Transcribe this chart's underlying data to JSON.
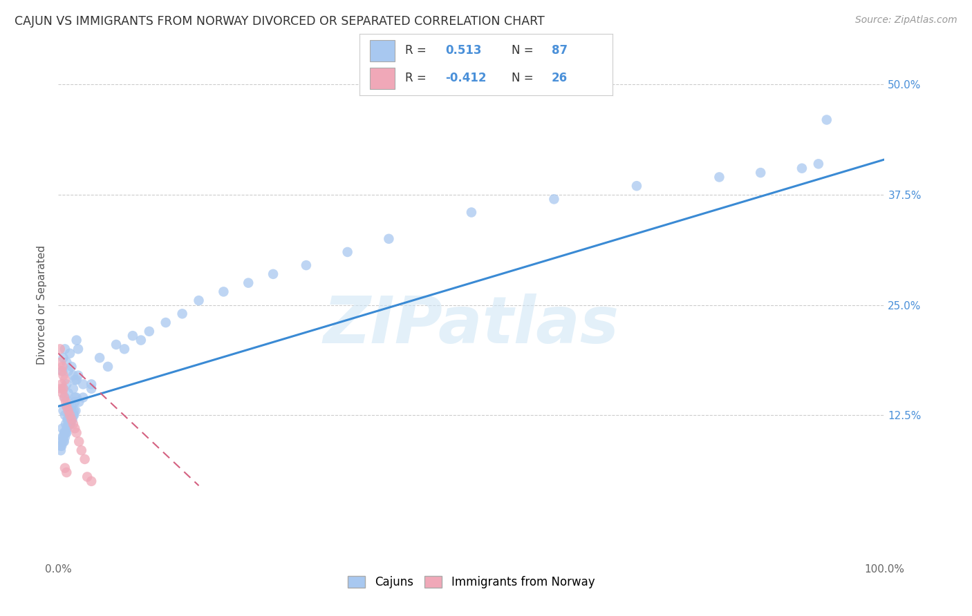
{
  "title": "CAJUN VS IMMIGRANTS FROM NORWAY DIVORCED OR SEPARATED CORRELATION CHART",
  "source": "Source: ZipAtlas.com",
  "ylabel": "Divorced or Separated",
  "cajun_R": 0.513,
  "cajun_N": 87,
  "norway_R": -0.412,
  "norway_N": 26,
  "cajun_color": "#a8c8f0",
  "norway_color": "#f0a8b8",
  "cajun_line_color": "#3a8ad4",
  "norway_line_color": "#d46080",
  "xlim": [
    0.0,
    1.0
  ],
  "ylim": [
    -0.04,
    0.54
  ],
  "watermark": "ZIPatlas",
  "background_color": "#ffffff",
  "grid_color": "#cccccc",
  "title_color": "#333333",
  "ytick_color": "#4a90d9",
  "tick_label_color": "#666666",
  "cajun_scatter_x": [
    0.006,
    0.008,
    0.01,
    0.012,
    0.014,
    0.016,
    0.018,
    0.02,
    0.022,
    0.024,
    0.006,
    0.008,
    0.01,
    0.012,
    0.014,
    0.016,
    0.018,
    0.02,
    0.022,
    0.024,
    0.006,
    0.008,
    0.01,
    0.012,
    0.014,
    0.016,
    0.018,
    0.02,
    0.022,
    0.03,
    0.005,
    0.007,
    0.009,
    0.011,
    0.013,
    0.015,
    0.017,
    0.019,
    0.021,
    0.025,
    0.005,
    0.007,
    0.009,
    0.011,
    0.013,
    0.015,
    0.017,
    0.019,
    0.03,
    0.04,
    0.003,
    0.004,
    0.006,
    0.008,
    0.01,
    0.012,
    0.04,
    0.06,
    0.08,
    0.1,
    0.003,
    0.004,
    0.006,
    0.008,
    0.01,
    0.05,
    0.07,
    0.09,
    0.11,
    0.13,
    0.15,
    0.17,
    0.2,
    0.23,
    0.26,
    0.3,
    0.35,
    0.4,
    0.5,
    0.6,
    0.7,
    0.8,
    0.85,
    0.9,
    0.92,
    0.005,
    0.93
  ],
  "cajun_scatter_y": [
    0.19,
    0.2,
    0.185,
    0.175,
    0.195,
    0.18,
    0.17,
    0.165,
    0.21,
    0.2,
    0.155,
    0.145,
    0.16,
    0.15,
    0.14,
    0.135,
    0.155,
    0.145,
    0.165,
    0.17,
    0.13,
    0.125,
    0.135,
    0.12,
    0.115,
    0.13,
    0.125,
    0.14,
    0.145,
    0.16,
    0.11,
    0.105,
    0.115,
    0.12,
    0.125,
    0.115,
    0.12,
    0.125,
    0.13,
    0.14,
    0.1,
    0.095,
    0.105,
    0.11,
    0.115,
    0.12,
    0.125,
    0.13,
    0.145,
    0.155,
    0.09,
    0.095,
    0.1,
    0.105,
    0.11,
    0.115,
    0.16,
    0.18,
    0.2,
    0.21,
    0.085,
    0.09,
    0.095,
    0.1,
    0.105,
    0.19,
    0.205,
    0.215,
    0.22,
    0.23,
    0.24,
    0.255,
    0.265,
    0.275,
    0.285,
    0.295,
    0.31,
    0.325,
    0.355,
    0.37,
    0.385,
    0.395,
    0.4,
    0.405,
    0.41,
    0.175,
    0.46
  ],
  "norway_scatter_x": [
    0.002,
    0.003,
    0.005,
    0.004,
    0.006,
    0.008,
    0.003,
    0.005,
    0.007,
    0.009,
    0.01,
    0.012,
    0.014,
    0.016,
    0.018,
    0.02,
    0.022,
    0.025,
    0.028,
    0.032,
    0.004,
    0.006,
    0.008,
    0.01,
    0.035,
    0.04
  ],
  "norway_scatter_y": [
    0.2,
    0.185,
    0.18,
    0.175,
    0.17,
    0.165,
    0.155,
    0.15,
    0.145,
    0.14,
    0.135,
    0.13,
    0.125,
    0.12,
    0.115,
    0.11,
    0.105,
    0.095,
    0.085,
    0.075,
    0.16,
    0.155,
    0.065,
    0.06,
    0.055,
    0.05
  ],
  "cajun_line_x": [
    0.0,
    1.0
  ],
  "cajun_line_y": [
    0.135,
    0.415
  ],
  "norway_line_x": [
    0.0,
    0.17
  ],
  "norway_line_y": [
    0.195,
    0.045
  ]
}
